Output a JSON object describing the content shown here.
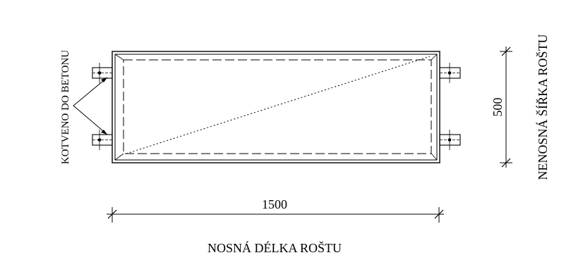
{
  "labels": {
    "anchor_note": "KOTVENO DO BETONU",
    "length_dimension": "1500",
    "width_dimension": "500",
    "length_caption": "NOSNÁ DÉLKA ROŠTU",
    "width_caption": "NENOSNÁ ŠÍŘKA ROŠTU"
  },
  "colors": {
    "line": "#000000",
    "background": "#ffffff"
  }
}
